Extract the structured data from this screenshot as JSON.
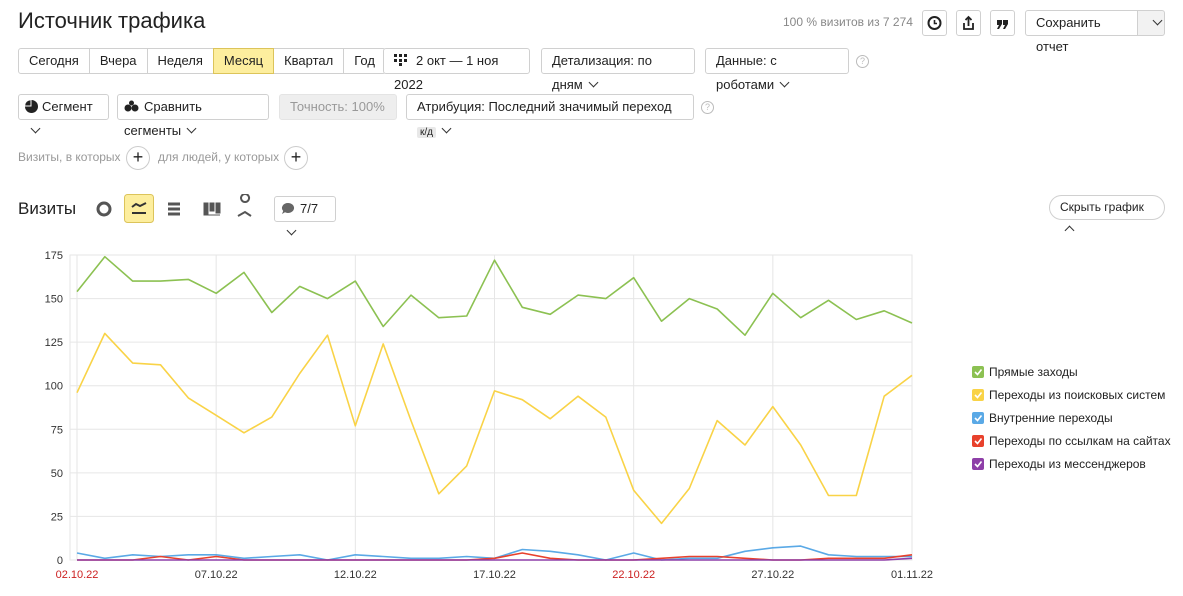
{
  "header": {
    "title": "Источник трафика",
    "summary": "100 % визитов из 7 274",
    "save_button": "Сохранить отчет"
  },
  "periods": {
    "buttons": [
      "Сегодня",
      "Вчера",
      "Неделя",
      "Месяц",
      "Квартал",
      "Год"
    ],
    "active": 3
  },
  "filters": {
    "date_range": "2 окт — 1 ноя 2022",
    "detail": "Детализация: по дням",
    "data": "Данные: с роботами"
  },
  "segment_bar": {
    "segment": "Сегмент",
    "compare": "Сравнить сегменты",
    "accuracy": "Точность: 100%",
    "attribution": "Атрибуция: Последний значимый переход",
    "attribution_badge": "к/д"
  },
  "conditions": {
    "visits": "Визиты, в которых",
    "people": "для людей, у которых"
  },
  "chart_header": {
    "title": "Визиты",
    "comments": "7/7",
    "hide": "Скрыть график"
  },
  "chart_data": {
    "type": "line",
    "categories": [
      "02.10.22",
      null,
      null,
      null,
      null,
      "07.10.22",
      null,
      null,
      null,
      null,
      "12.10.22",
      null,
      null,
      null,
      null,
      "17.10.22",
      null,
      null,
      null,
      null,
      "22.10.22",
      null,
      null,
      null,
      null,
      "27.10.22",
      null,
      null,
      null,
      null,
      "01.11.22"
    ],
    "category_label_colors": [
      "#cc1f1f",
      null,
      null,
      null,
      null,
      "#333333",
      null,
      null,
      null,
      null,
      "#333333",
      null,
      null,
      null,
      null,
      "#333333",
      null,
      null,
      null,
      null,
      "#cc1f1f",
      null,
      null,
      null,
      null,
      "#333333",
      null,
      null,
      null,
      null,
      "#333333"
    ],
    "ylim": [
      0,
      175
    ],
    "yticks": [
      0,
      25,
      50,
      75,
      100,
      125,
      150,
      175
    ],
    "grid": true,
    "legend": "right",
    "series": [
      {
        "name": "Прямые заходы",
        "color": "#8cc152",
        "values": [
          154,
          174,
          160,
          160,
          161,
          153,
          165,
          142,
          157,
          150,
          160,
          134,
          152,
          139,
          140,
          172,
          145,
          141,
          152,
          150,
          162,
          137,
          150,
          144,
          129,
          153,
          139,
          149,
          138,
          143,
          136
        ]
      },
      {
        "name": "Переходы из поисковых систем",
        "color": "#f9d347",
        "values": [
          96,
          130,
          113,
          112,
          93,
          83,
          73,
          82,
          107,
          129,
          77,
          124,
          80,
          38,
          54,
          97,
          92,
          81,
          94,
          82,
          40,
          21,
          41,
          80,
          66,
          88,
          66,
          37,
          37,
          94,
          106
        ]
      },
      {
        "name": "Внутренние переходы",
        "color": "#5aa9e6",
        "values": [
          4,
          1,
          3,
          2,
          3,
          3,
          1,
          2,
          3,
          0,
          3,
          2,
          1,
          1,
          2,
          1,
          6,
          5,
          3,
          0,
          4,
          0,
          1,
          1,
          5,
          7,
          8,
          3,
          2,
          2,
          2
        ]
      },
      {
        "name": "Переходы по ссылкам на сайтах",
        "color": "#e8412c",
        "values": [
          0,
          0,
          0,
          2,
          0,
          2,
          0,
          0,
          0,
          0,
          0,
          0,
          0,
          0,
          0,
          1,
          4,
          1,
          0,
          0,
          0,
          1,
          2,
          2,
          1,
          0,
          0,
          1,
          1,
          1,
          3
        ]
      },
      {
        "name": "Переходы из мессенджеров",
        "color": "#8e3fa8",
        "values": [
          0,
          0,
          0,
          0,
          0,
          0,
          0,
          0,
          0,
          0,
          0,
          0,
          0,
          0,
          0,
          0,
          0,
          0,
          0,
          0,
          0,
          0,
          0,
          0,
          0,
          0,
          0,
          0,
          0,
          0,
          1
        ]
      }
    ]
  }
}
